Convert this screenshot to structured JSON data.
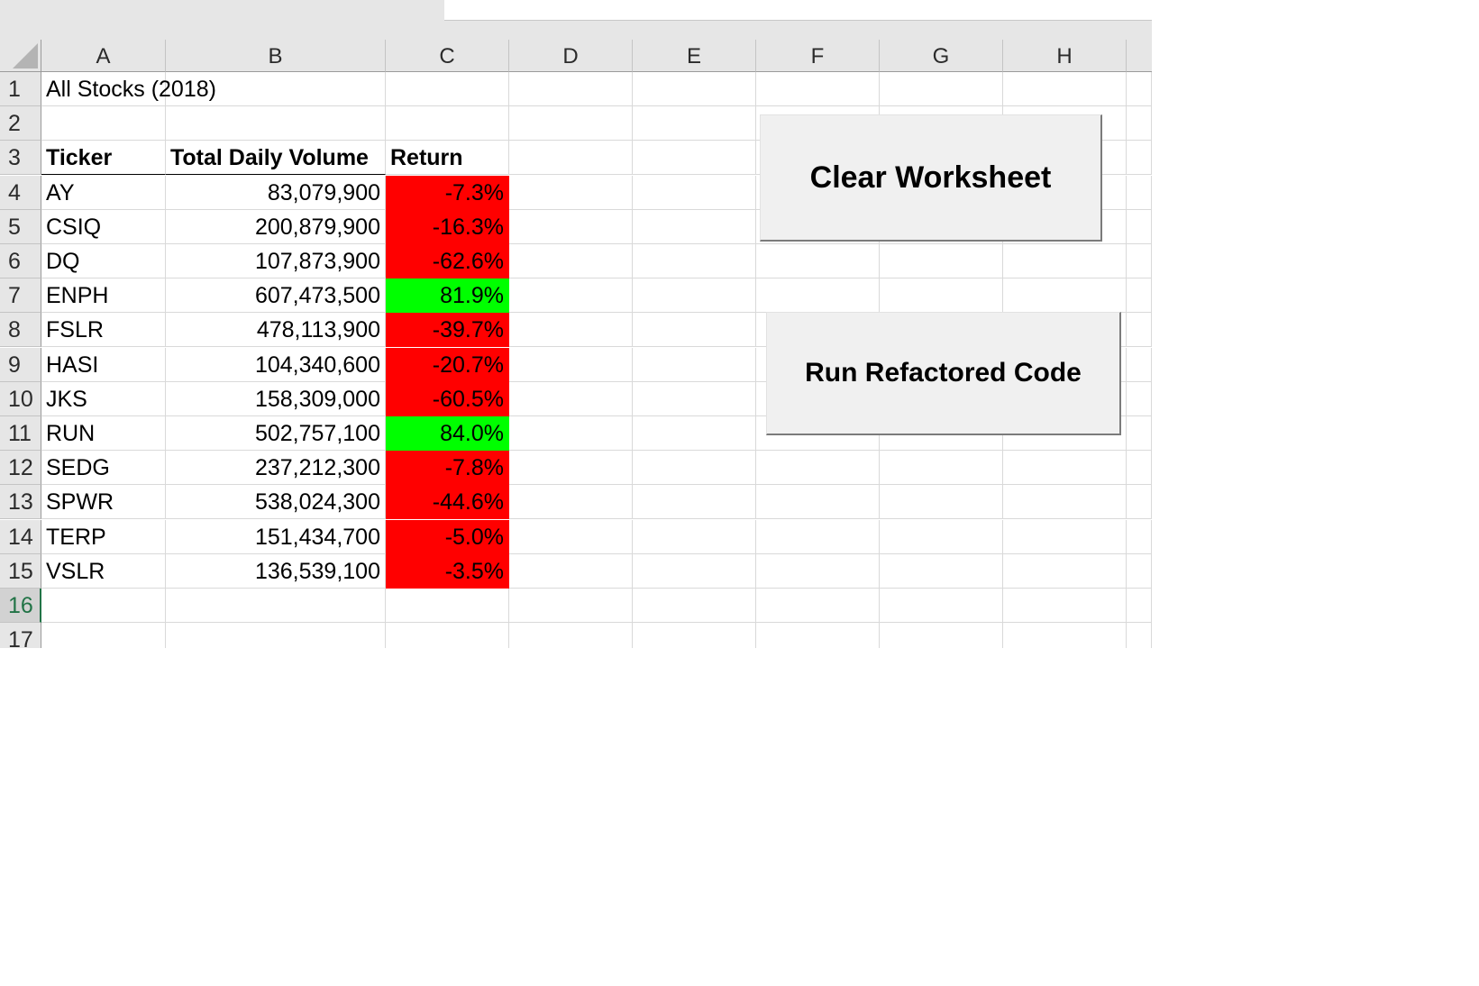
{
  "columns": [
    "A",
    "B",
    "C",
    "D",
    "E",
    "F",
    "G",
    "H"
  ],
  "rows": [
    "1",
    "2",
    "3",
    "4",
    "5",
    "6",
    "7",
    "8",
    "9",
    "10",
    "11",
    "12",
    "13",
    "14",
    "15",
    "16",
    "17"
  ],
  "selected_row": "16",
  "sheet": {
    "title": "All Stocks (2018)",
    "headers": {
      "ticker": "Ticker",
      "volume": "Total Daily Volume",
      "return": "Return"
    },
    "stocks": [
      {
        "ticker": "AY",
        "volume": "83,079,900",
        "return": "-7.3%",
        "status": "negative"
      },
      {
        "ticker": "CSIQ",
        "volume": "200,879,900",
        "return": "-16.3%",
        "status": "negative"
      },
      {
        "ticker": "DQ",
        "volume": "107,873,900",
        "return": "-62.6%",
        "status": "negative"
      },
      {
        "ticker": "ENPH",
        "volume": "607,473,500",
        "return": "81.9%",
        "status": "positive"
      },
      {
        "ticker": "FSLR",
        "volume": "478,113,900",
        "return": "-39.7%",
        "status": "negative"
      },
      {
        "ticker": "HASI",
        "volume": "104,340,600",
        "return": "-20.7%",
        "status": "negative"
      },
      {
        "ticker": "JKS",
        "volume": "158,309,000",
        "return": "-60.5%",
        "status": "negative"
      },
      {
        "ticker": "RUN",
        "volume": "502,757,100",
        "return": "84.0%",
        "status": "positive"
      },
      {
        "ticker": "SEDG",
        "volume": "237,212,300",
        "return": "-7.8%",
        "status": "negative"
      },
      {
        "ticker": "SPWR",
        "volume": "538,024,300",
        "return": "-44.6%",
        "status": "negative"
      },
      {
        "ticker": "TERP",
        "volume": "151,434,700",
        "return": "-5.0%",
        "status": "negative"
      },
      {
        "ticker": "VSLR",
        "volume": "136,539,100",
        "return": "-3.5%",
        "status": "negative"
      }
    ]
  },
  "buttons": {
    "clear_label": "Clear Worksheet",
    "run_label": "Run Refactored Code"
  },
  "colors": {
    "negative": "#ff0000",
    "positive": "#00ff00",
    "selected_row_accent": "#217346"
  }
}
